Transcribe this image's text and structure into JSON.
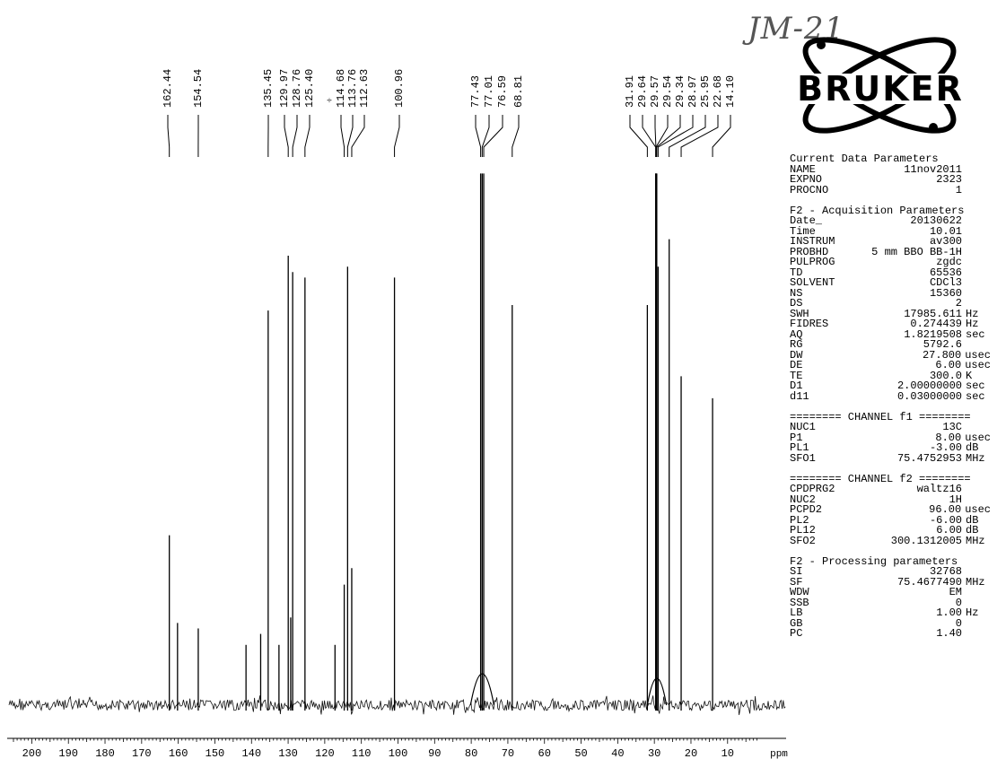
{
  "sample_label": "JM-21",
  "logo_text": "BRUKER",
  "chart_data": {
    "type": "line",
    "title": "",
    "xlabel": "ppm",
    "ylabel": "",
    "xlim": [
      205,
      -5
    ],
    "x_reversed": true,
    "x_ticks": [
      200,
      190,
      180,
      170,
      160,
      150,
      140,
      130,
      120,
      110,
      100,
      90,
      80,
      70,
      60,
      50,
      40,
      30,
      20,
      10
    ],
    "peak_labels": [
      "162.44",
      "154.54",
      "135.45",
      "129.97",
      "128.76",
      "125.40",
      "114.68",
      "113.76",
      "112.63",
      "100.96",
      "77.43",
      "77.01",
      "76.59",
      "68.81",
      "31.91",
      "29.64",
      "29.57",
      "29.54",
      "29.34",
      "28.97",
      "25.95",
      "22.68",
      "14.10"
    ],
    "peaks": [
      {
        "ppm": 162.44,
        "h": 0.31
      },
      {
        "ppm": 160.2,
        "h": 0.15
      },
      {
        "ppm": 154.54,
        "h": 0.14
      },
      {
        "ppm": 141.5,
        "h": 0.11
      },
      {
        "ppm": 137.5,
        "h": 0.13
      },
      {
        "ppm": 135.45,
        "h": 0.72
      },
      {
        "ppm": 132.5,
        "h": 0.11
      },
      {
        "ppm": 129.97,
        "h": 0.82
      },
      {
        "ppm": 129.3,
        "h": 0.16
      },
      {
        "ppm": 128.76,
        "h": 0.79
      },
      {
        "ppm": 125.4,
        "h": 0.78
      },
      {
        "ppm": 117.2,
        "h": 0.11
      },
      {
        "ppm": 114.68,
        "h": 0.22
      },
      {
        "ppm": 113.76,
        "h": 0.8
      },
      {
        "ppm": 112.63,
        "h": 0.25
      },
      {
        "ppm": 100.96,
        "h": 0.78
      },
      {
        "ppm": 77.43,
        "h": 0.97
      },
      {
        "ppm": 77.01,
        "h": 0.97
      },
      {
        "ppm": 76.59,
        "h": 0.97
      },
      {
        "ppm": 68.81,
        "h": 0.73
      },
      {
        "ppm": 31.91,
        "h": 0.73
      },
      {
        "ppm": 29.64,
        "h": 0.97
      },
      {
        "ppm": 29.57,
        "h": 0.97
      },
      {
        "ppm": 29.54,
        "h": 0.97
      },
      {
        "ppm": 29.34,
        "h": 0.97
      },
      {
        "ppm": 28.97,
        "h": 0.8
      },
      {
        "ppm": 25.95,
        "h": 0.85
      },
      {
        "ppm": 22.68,
        "h": 0.6
      },
      {
        "ppm": 14.1,
        "h": 0.56
      }
    ]
  },
  "params": {
    "current": {
      "title": "Current Data Parameters",
      "rows": [
        {
          "k": "NAME",
          "v": "11nov2011",
          "u": ""
        },
        {
          "k": "EXPNO",
          "v": "2323",
          "u": ""
        },
        {
          "k": "PROCNO",
          "v": "1",
          "u": ""
        }
      ]
    },
    "acq": {
      "title": "F2 - Acquisition Parameters",
      "rows": [
        {
          "k": "Date_",
          "v": "20130622",
          "u": ""
        },
        {
          "k": "Time",
          "v": "10.01",
          "u": ""
        },
        {
          "k": "INSTRUM",
          "v": "av300",
          "u": ""
        },
        {
          "k": "PROBHD",
          "v": "5 mm BBO BB-1H",
          "u": ""
        },
        {
          "k": "PULPROG",
          "v": "zgdc",
          "u": ""
        },
        {
          "k": "TD",
          "v": "65536",
          "u": ""
        },
        {
          "k": "SOLVENT",
          "v": "CDCl3",
          "u": ""
        },
        {
          "k": "NS",
          "v": "15360",
          "u": ""
        },
        {
          "k": "DS",
          "v": "2",
          "u": ""
        },
        {
          "k": "SWH",
          "v": "17985.611",
          "u": "Hz"
        },
        {
          "k": "FIDRES",
          "v": "0.274439",
          "u": "Hz"
        },
        {
          "k": "AQ",
          "v": "1.8219508",
          "u": "sec"
        },
        {
          "k": "RG",
          "v": "5792.6",
          "u": ""
        },
        {
          "k": "DW",
          "v": "27.800",
          "u": "usec"
        },
        {
          "k": "DE",
          "v": "6.00",
          "u": "usec"
        },
        {
          "k": "TE",
          "v": "300.0",
          "u": "K"
        },
        {
          "k": "D1",
          "v": "2.00000000",
          "u": "sec"
        },
        {
          "k": "d11",
          "v": "0.03000000",
          "u": "sec"
        }
      ]
    },
    "ch1": {
      "title": "======== CHANNEL f1 ========",
      "rows": [
        {
          "k": "NUC1",
          "v": "13C",
          "u": ""
        },
        {
          "k": "P1",
          "v": "8.00",
          "u": "usec"
        },
        {
          "k": "PL1",
          "v": "-3.00",
          "u": "dB"
        },
        {
          "k": "SFO1",
          "v": "75.4752953",
          "u": "MHz"
        }
      ]
    },
    "ch2": {
      "title": "======== CHANNEL f2 ========",
      "rows": [
        {
          "k": "CPDPRG2",
          "v": "waltz16",
          "u": ""
        },
        {
          "k": "NUC2",
          "v": "1H",
          "u": ""
        },
        {
          "k": "PCPD2",
          "v": "96.00",
          "u": "usec"
        },
        {
          "k": "PL2",
          "v": "-6.00",
          "u": "dB"
        },
        {
          "k": "PL12",
          "v": "6.00",
          "u": "dB"
        },
        {
          "k": "SFO2",
          "v": "300.1312005",
          "u": "MHz"
        }
      ]
    },
    "proc": {
      "title": "F2 - Processing parameters",
      "rows": [
        {
          "k": "SI",
          "v": "32768",
          "u": ""
        },
        {
          "k": "SF",
          "v": "75.4677490",
          "u": "MHz"
        },
        {
          "k": "WDW",
          "v": "EM",
          "u": ""
        },
        {
          "k": "SSB",
          "v": "0",
          "u": ""
        },
        {
          "k": "LB",
          "v": "1.00",
          "u": "Hz"
        },
        {
          "k": "GB",
          "v": "0",
          "u": ""
        },
        {
          "k": "PC",
          "v": "1.40",
          "u": ""
        }
      ]
    }
  }
}
